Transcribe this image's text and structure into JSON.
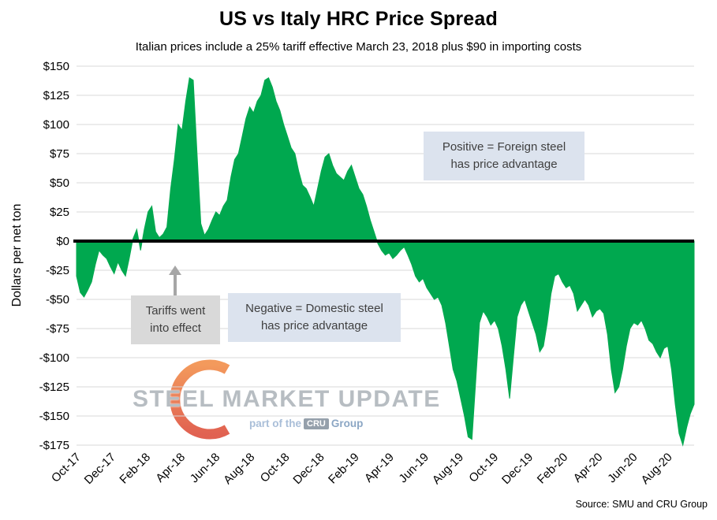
{
  "header": {
    "title": "US vs Italy HRC Price Spread",
    "subtitle": "Italian prices include a 25% tariff effective March 23, 2018 plus $90 in importing costs"
  },
  "annotations": {
    "positive": {
      "line1": "Positive = Foreign steel",
      "line2": "has price advantage"
    },
    "negative": {
      "line1": "Negative = Domestic steel",
      "line2": "has price advantage"
    },
    "tariffs": {
      "line1": "Tariffs went",
      "line2": "into effect"
    }
  },
  "watermark": {
    "title": "STEEL MARKET UPDATE",
    "part_of": "part of the",
    "cru": "CRU",
    "group": "Group"
  },
  "footer": {
    "source": "Source: SMU and CRU Group"
  },
  "chart_data": {
    "type": "area",
    "title": "US vs Italy HRC Price Spread",
    "subtitle": "Italian prices include a 25% tariff effective March 23, 2018 plus $90 in importing costs",
    "xlabel": "",
    "ylabel": "Dollars per net ton",
    "ylim": [
      -175,
      150
    ],
    "grid": "horizontal",
    "legend": "none",
    "y_ticks": [
      {
        "value": 150,
        "label": "$150"
      },
      {
        "value": 125,
        "label": "$125"
      },
      {
        "value": 100,
        "label": "$100"
      },
      {
        "value": 75,
        "label": "$75"
      },
      {
        "value": 50,
        "label": "$50"
      },
      {
        "value": 25,
        "label": "$25"
      },
      {
        "value": 0,
        "label": "$0"
      },
      {
        "value": -25,
        "label": "-$25"
      },
      {
        "value": -50,
        "label": "-$50"
      },
      {
        "value": -75,
        "label": "-$75"
      },
      {
        "value": -100,
        "label": "-$100"
      },
      {
        "value": -125,
        "label": "-$125"
      },
      {
        "value": -150,
        "label": "-$150"
      },
      {
        "value": -175,
        "label": "-$175"
      }
    ],
    "x_tick_labels": [
      "Oct-17",
      "Dec-17",
      "Feb-18",
      "Apr-18",
      "Jun-18",
      "Aug-18",
      "Oct-18",
      "Dec-18",
      "Feb-19",
      "Apr-19",
      "Jun-19",
      "Aug-19",
      "Oct-19",
      "Dec-19",
      "Feb-20",
      "Apr-20",
      "Jun-20",
      "Aug-20"
    ],
    "x_tick_months": [
      0,
      2,
      4,
      6,
      8,
      10,
      12,
      14,
      16,
      18,
      20,
      22,
      24,
      26,
      28,
      30,
      32,
      34
    ],
    "x_total_months": 35.5,
    "x_unit": "weekly observations, Oct-17 through Sep-20",
    "values": [
      -30,
      -44,
      -48,
      -42,
      -35,
      -20,
      -8,
      -12,
      -15,
      -22,
      -28,
      -18,
      -25,
      -30,
      -15,
      2,
      10,
      -8,
      10,
      25,
      30,
      8,
      3,
      6,
      12,
      45,
      70,
      100,
      95,
      120,
      140,
      138,
      75,
      15,
      5,
      10,
      18,
      25,
      22,
      30,
      35,
      55,
      70,
      75,
      90,
      105,
      115,
      110,
      120,
      125,
      138,
      140,
      132,
      120,
      112,
      100,
      90,
      80,
      75,
      60,
      48,
      45,
      38,
      30,
      45,
      60,
      72,
      75,
      65,
      58,
      55,
      52,
      60,
      65,
      55,
      45,
      40,
      30,
      18,
      8,
      -2,
      -8,
      -12,
      -10,
      -15,
      -12,
      -8,
      -5,
      -12,
      -20,
      -30,
      -35,
      -32,
      -40,
      -45,
      -50,
      -48,
      -55,
      -70,
      -90,
      -110,
      -120,
      -135,
      -150,
      -168,
      -170,
      -120,
      -70,
      -60,
      -65,
      -72,
      -68,
      -75,
      -90,
      -110,
      -135,
      -100,
      -65,
      -55,
      -50,
      -60,
      -70,
      -80,
      -95,
      -90,
      -70,
      -45,
      -30,
      -28,
      -35,
      -40,
      -38,
      -45,
      -60,
      -55,
      -50,
      -55,
      -65,
      -60,
      -58,
      -62,
      -80,
      -110,
      -130,
      -125,
      -110,
      -90,
      -75,
      -70,
      -72,
      -68,
      -75,
      -85,
      -88,
      -95,
      -100,
      -92,
      -90,
      -110,
      -140,
      -165,
      -175,
      -160,
      -148,
      -140
    ],
    "colors": {
      "area": "#00a84f",
      "zero_line": "#000000",
      "gridline": "#d9d9d9",
      "annotation_blue": "#dce3ee",
      "annotation_gray": "#d9d9d9",
      "logo_orange": "#e2512c"
    }
  }
}
